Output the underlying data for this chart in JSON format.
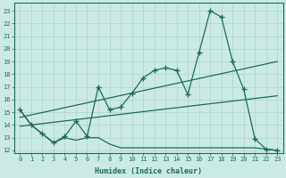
{
  "xlabel": "Humidex (Indice chaleur)",
  "bg_color": "#cceae4",
  "grid_color": "#aad4cc",
  "line_color": "#1a6b5a",
  "xlim": [
    -0.5,
    23.5
  ],
  "ylim": [
    11.8,
    23.6
  ],
  "xticks": [
    0,
    1,
    2,
    3,
    4,
    5,
    6,
    7,
    8,
    9,
    10,
    11,
    12,
    13,
    14,
    15,
    16,
    17,
    18,
    19,
    20,
    21,
    22,
    23
  ],
  "yticks": [
    12,
    13,
    14,
    15,
    16,
    17,
    18,
    19,
    20,
    21,
    22,
    23
  ],
  "jagged_x": [
    0,
    1,
    2,
    3,
    4,
    5,
    6,
    7,
    8,
    9,
    10,
    11,
    12,
    13,
    14,
    15,
    16,
    17,
    18,
    19,
    20,
    21,
    22,
    23
  ],
  "jagged_y": [
    15.2,
    14.0,
    13.3,
    12.6,
    13.1,
    14.3,
    13.1,
    17.0,
    15.2,
    15.4,
    16.5,
    17.7,
    18.3,
    18.5,
    18.3,
    16.4,
    19.7,
    23.0,
    22.5,
    19.0,
    16.8,
    12.9,
    12.1,
    12.0
  ],
  "upper_line_x": [
    0,
    23
  ],
  "upper_line_y": [
    14.6,
    19.0
  ],
  "lower_line_x": [
    0,
    23
  ],
  "lower_line_y": [
    13.9,
    16.3
  ],
  "flat_x": [
    0,
    1,
    2,
    3,
    4,
    5,
    6,
    7,
    8,
    9,
    10,
    11,
    12,
    13,
    14,
    15,
    16,
    17,
    18,
    19,
    20,
    21,
    22,
    23
  ],
  "flat_y": [
    15.2,
    14.0,
    13.3,
    12.6,
    13.0,
    12.8,
    13.0,
    13.0,
    12.5,
    12.2,
    12.2,
    12.2,
    12.2,
    12.2,
    12.2,
    12.2,
    12.2,
    12.2,
    12.2,
    12.2,
    12.2,
    12.2,
    12.1,
    12.0
  ]
}
